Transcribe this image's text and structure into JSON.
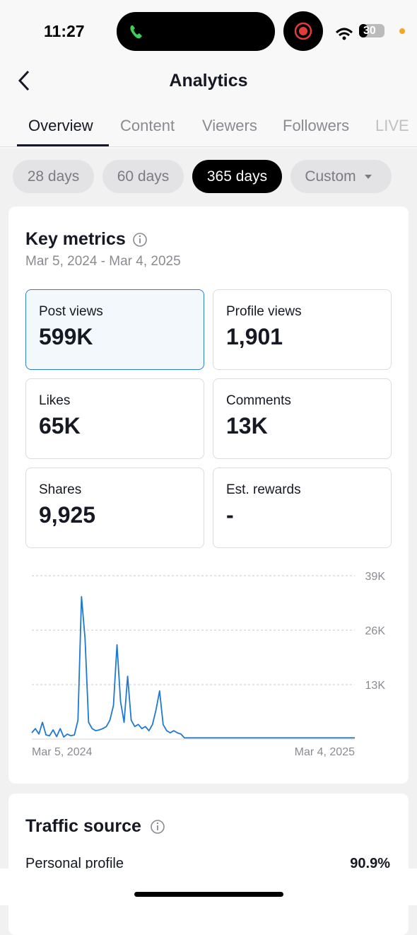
{
  "status_bar": {
    "time": "11:27",
    "battery": "30"
  },
  "header": {
    "title": "Analytics"
  },
  "tabs": [
    "Overview",
    "Content",
    "Viewers",
    "Followers",
    "LIVE"
  ],
  "filters": [
    "28 days",
    "60 days",
    "365 days",
    "Custom"
  ],
  "key_metrics": {
    "title": "Key metrics",
    "date_range": "Mar 5, 2024 - Mar 4, 2025",
    "metrics": [
      {
        "label": "Post views",
        "value": "599K"
      },
      {
        "label": "Profile views",
        "value": "1,901"
      },
      {
        "label": "Likes",
        "value": "65K"
      },
      {
        "label": "Comments",
        "value": "13K"
      },
      {
        "label": "Shares",
        "value": "9,925"
      },
      {
        "label": "Est. rewards",
        "value": "-"
      }
    ]
  },
  "chart_data": {
    "type": "line",
    "color": "#1f78d1",
    "grid": true,
    "categories": [
      "Mar 5, 2024",
      null,
      null,
      null,
      null,
      null,
      null,
      null,
      null,
      null,
      null,
      null,
      null,
      null,
      null,
      null,
      null,
      null,
      null,
      null,
      null,
      null,
      null,
      null,
      null,
      null,
      null,
      null,
      null,
      null,
      null,
      null,
      null,
      null,
      null,
      null,
      null,
      null,
      null,
      null,
      null,
      null,
      null,
      null,
      null,
      null,
      null,
      null,
      null,
      null,
      null,
      null,
      null,
      null,
      null,
      null,
      null,
      null,
      null,
      null,
      null,
      null,
      null,
      null,
      null,
      null,
      null,
      null,
      null,
      null,
      null,
      null,
      null,
      null,
      null,
      null,
      null,
      null,
      null,
      null,
      null,
      null,
      null,
      null,
      null,
      null,
      null,
      null,
      null,
      null,
      null,
      "Mar 4, 2025"
    ],
    "values": [
      1500,
      2500,
      1200,
      4000,
      1000,
      800,
      2200,
      600,
      2500,
      500,
      1200,
      800,
      1000,
      4500,
      34000,
      24000,
      4000,
      2500,
      2000,
      2200,
      2500,
      3000,
      4500,
      8000,
      22500,
      9000,
      4000,
      15000,
      4500,
      3000,
      3500,
      2500,
      3000,
      2000,
      3500,
      7000,
      11500,
      3500,
      2000,
      1500,
      2000,
      1500,
      1200,
      300,
      300,
      300,
      300,
      300,
      300,
      300,
      300,
      300,
      300,
      300,
      300,
      300,
      300,
      300,
      300,
      300,
      300,
      300,
      300,
      300,
      300,
      300,
      300,
      300,
      300,
      300,
      300,
      300,
      300,
      300,
      300,
      300,
      300,
      300,
      300,
      300,
      300,
      300,
      300,
      300,
      300,
      300,
      300,
      300,
      300,
      300,
      300,
      300
    ],
    "ylim": [
      0,
      39000
    ],
    "yticks": [
      {
        "value": 13000,
        "label": "13K"
      },
      {
        "value": 26000,
        "label": "26K"
      },
      {
        "value": 39000,
        "label": "39K"
      }
    ]
  },
  "traffic_source": {
    "title": "Traffic source",
    "rows": [
      [
        "Personal profile",
        "90.9%"
      ]
    ]
  }
}
